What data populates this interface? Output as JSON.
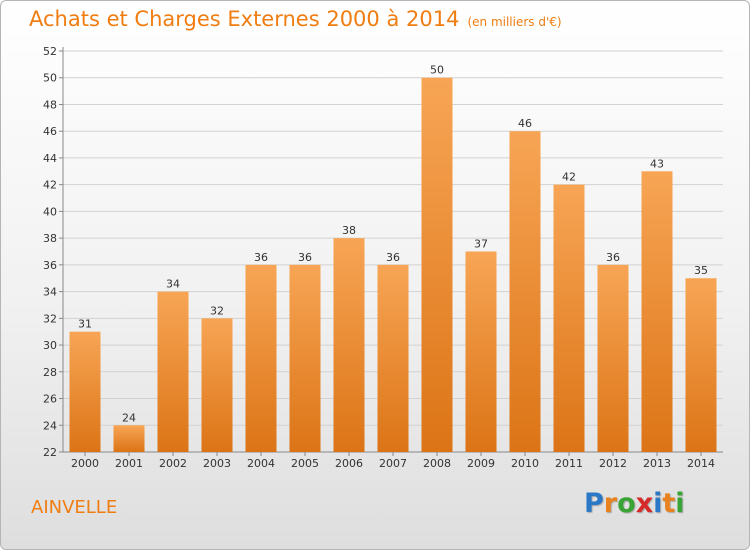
{
  "header": {
    "title": "Achats et Charges Externes 2000 à 2014",
    "unit": "(en milliers d'€)"
  },
  "commune": "AINVELLE",
  "logo": {
    "text": "Proxiti",
    "letters": [
      "P",
      "r",
      "o",
      "x",
      "i",
      "t",
      "i"
    ],
    "colors": [
      "#2a78c6",
      "#e8821e",
      "#3aa335",
      "#d62a2a",
      "#2a78c6",
      "#e8821e",
      "#3aa335"
    ]
  },
  "colors": {
    "bar_top": "#f7a555",
    "bar_bottom": "#dc7416",
    "accent": "#f07d12"
  },
  "chart_data": {
    "type": "bar",
    "title": "Achats et Charges Externes 2000 à 2014",
    "subtitle": "(en milliers d'€)",
    "categories": [
      "2000",
      "2001",
      "2002",
      "2003",
      "2004",
      "2005",
      "2006",
      "2007",
      "2008",
      "2009",
      "2010",
      "2011",
      "2012",
      "2013",
      "2014"
    ],
    "values": [
      31,
      24,
      34,
      32,
      36,
      36,
      38,
      36,
      50,
      37,
      46,
      42,
      36,
      43,
      35
    ],
    "ylim": [
      22,
      52
    ],
    "yticks": [
      22,
      24,
      26,
      28,
      30,
      32,
      34,
      36,
      38,
      40,
      42,
      44,
      46,
      48,
      50,
      52
    ],
    "grid": true,
    "xlabel": "",
    "ylabel": ""
  }
}
